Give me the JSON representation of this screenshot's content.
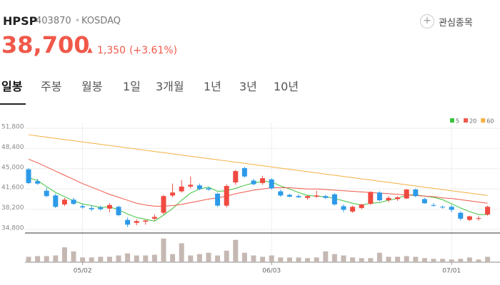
{
  "header": {
    "name": "HPSP",
    "code": "403870",
    "separator": "•",
    "market": "KOSDAQ",
    "favorite": "관심종목",
    "price": "38,700",
    "change": "1,350",
    "change_pct": "(+3.61%)"
  },
  "tabs": [
    "일봉",
    "주봉",
    "월봉",
    "1일",
    "3개월",
    "1년",
    "3년",
    "10년"
  ],
  "chart_data": {
    "type": "candlestick",
    "categories": [
      null,
      null,
      null,
      null,
      null,
      null,
      "05/02",
      null,
      null,
      null,
      null,
      null,
      null,
      null,
      null,
      null,
      null,
      null,
      null,
      null,
      null,
      null,
      null,
      null,
      null,
      null,
      null,
      "06/03",
      null,
      null,
      null,
      null,
      null,
      null,
      null,
      null,
      null,
      null,
      null,
      null,
      null,
      null,
      null,
      null,
      null,
      null,
      null,
      "07/01",
      null,
      null,
      null,
      null
    ],
    "open": [
      44900,
      42900,
      41300,
      40500,
      39000,
      39800,
      38700,
      38400,
      38500,
      38300,
      38600,
      36400,
      35900,
      36100,
      36600,
      37600,
      40500,
      41200,
      42000,
      42200,
      41700,
      40800,
      38800,
      42700,
      45100,
      43000,
      42600,
      43200,
      41200,
      40600,
      40400,
      40100,
      40300,
      40400,
      40700,
      38700,
      37800,
      38400,
      39100,
      41000,
      39700,
      39900,
      40000,
      41500,
      39900,
      38900,
      38600,
      38600,
      37600,
      36400,
      36700,
      37300
    ],
    "high": [
      45100,
      43300,
      41800,
      40800,
      40100,
      40100,
      39000,
      38800,
      38800,
      39200,
      38800,
      36800,
      36500,
      36400,
      37300,
      40600,
      42500,
      43100,
      43700,
      42500,
      42000,
      41000,
      42400,
      44800,
      45300,
      43300,
      43800,
      43400,
      41500,
      40800,
      40700,
      40500,
      41300,
      40600,
      40900,
      39000,
      38800,
      39100,
      41200,
      41200,
      40400,
      40400,
      41600,
      41700,
      40100,
      39200,
      38800,
      38900,
      37800,
      37100,
      37000,
      38800
    ],
    "low": [
      42400,
      42300,
      40200,
      38400,
      38700,
      38900,
      38300,
      37900,
      38000,
      37700,
      37000,
      35200,
      35500,
      35600,
      36300,
      37300,
      40200,
      41000,
      41700,
      41400,
      41300,
      38600,
      38500,
      42300,
      43500,
      42200,
      42300,
      41500,
      40300,
      40200,
      40100,
      39800,
      40100,
      39900,
      38800,
      37700,
      37600,
      38200,
      38900,
      39500,
      39400,
      39600,
      39900,
      40200,
      39100,
      38600,
      38300,
      37700,
      36300,
      36200,
      36300,
      37100
    ],
    "close": [
      42600,
      42500,
      40400,
      38600,
      39800,
      39100,
      38500,
      38200,
      38200,
      38900,
      37200,
      35600,
      36200,
      36300,
      36900,
      40400,
      41000,
      42000,
      42300,
      41600,
      41500,
      38800,
      42100,
      44600,
      43700,
      42400,
      43400,
      41700,
      40500,
      40300,
      40200,
      40400,
      40500,
      40100,
      39000,
      38100,
      38600,
      39000,
      41100,
      39700,
      40100,
      40200,
      41500,
      40400,
      39200,
      38800,
      38500,
      38100,
      36600,
      37000,
      36700,
      38600
    ],
    "up_color": "#f04a40",
    "down_color": "#2d9ae8",
    "series": [
      {
        "name": "5",
        "color": "#3ac33a",
        "values": [
          43500,
          43000,
          42000,
          41000,
          40300,
          39600,
          39100,
          38800,
          38500,
          38600,
          38100,
          37400,
          36800,
          36500,
          36200,
          37200,
          38300,
          39700,
          40900,
          41600,
          41900,
          41200,
          41300,
          41700,
          42200,
          42600,
          42900,
          42800,
          42100,
          41600,
          41000,
          40500,
          40400,
          40300,
          40000,
          39600,
          39200,
          38900,
          39200,
          39300,
          39700,
          40000,
          40600,
          40600,
          40400,
          40200,
          39800,
          39100,
          38400,
          37800,
          37300,
          37300
        ]
      },
      {
        "name": "20",
        "color": "#f0584a",
        "values": [
          46600,
          46000,
          45300,
          44600,
          43900,
          43200,
          42500,
          41900,
          41300,
          40700,
          40200,
          39700,
          39200,
          38900,
          38700,
          38700,
          38800,
          39000,
          39300,
          39600,
          39900,
          40100,
          40400,
          40800,
          41100,
          41400,
          41600,
          41800,
          41800,
          41800,
          41700,
          41600,
          41600,
          41500,
          41400,
          41300,
          41200,
          41100,
          41000,
          40900,
          40800,
          40700,
          40600,
          40500,
          40400,
          40300,
          40100,
          40000,
          39800,
          39600,
          39400,
          39200
        ]
      },
      {
        "name": "60",
        "color": "#f5b041",
        "values": [
          50700,
          50500,
          50300,
          50100,
          49900,
          49700,
          49500,
          49300,
          49100,
          48900,
          48700,
          48500,
          48300,
          48100,
          47900,
          47700,
          47500,
          47300,
          47100,
          46900,
          46700,
          46500,
          46300,
          46100,
          45900,
          45700,
          45500,
          45300,
          45100,
          44900,
          44700,
          44500,
          44300,
          44100,
          43900,
          43700,
          43500,
          43300,
          43100,
          42900,
          42700,
          42500,
          42300,
          42100,
          41900,
          41700,
          41500,
          41300,
          41100,
          40900,
          40700,
          40500
        ]
      }
    ],
    "ylim": [
      34800,
      51800
    ],
    "yticks": [
      {
        "value": 51800,
        "label": "51,800"
      },
      {
        "value": 48400,
        "label": "48,400"
      },
      {
        "value": 45000,
        "label": "45,000"
      },
      {
        "value": 41600,
        "label": "41,600"
      },
      {
        "value": 38200,
        "label": "38,200"
      },
      {
        "value": 34800,
        "label": "34,800"
      }
    ],
    "volume": [
      8,
      9,
      9,
      10,
      22,
      16,
      7,
      7,
      8,
      8,
      10,
      13,
      10,
      10,
      11,
      35,
      12,
      28,
      10,
      12,
      14,
      10,
      17,
      33,
      14,
      10,
      8,
      10,
      7,
      7,
      7,
      6,
      7,
      16,
      12,
      10,
      7,
      6,
      6,
      14,
      8,
      8,
      9,
      8,
      6,
      5,
      5,
      4,
      5,
      7,
      4,
      8
    ],
    "volume_color": "#c5b8b2",
    "volume_ylim": [
      0,
      40
    ],
    "grid": true
  }
}
